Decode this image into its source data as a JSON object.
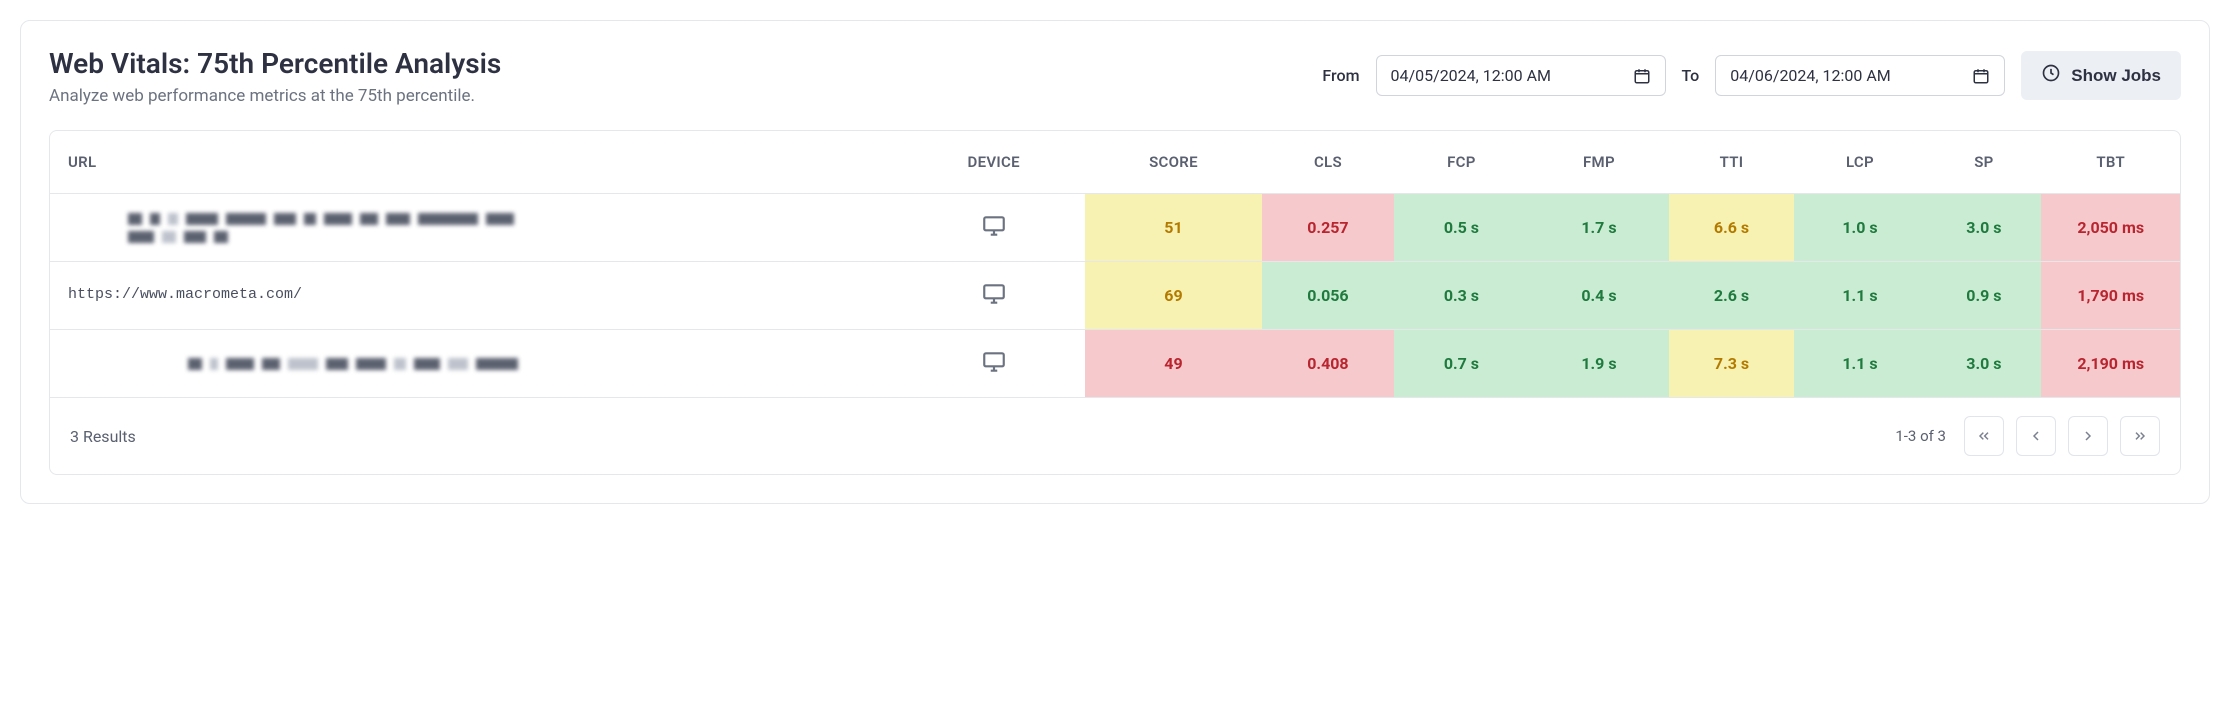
{
  "header": {
    "title": "Web Vitals: 75th Percentile Analysis",
    "subtitle": "Analyze web performance metrics at the 75th percentile.",
    "from_label": "From",
    "to_label": "To",
    "from_value": "04/05/2024, 12:00 AM",
    "to_value": "04/06/2024, 12:00 AM",
    "show_jobs_label": "Show Jobs"
  },
  "columns": [
    "URL",
    "DEVICE",
    "SCORE",
    "CLS",
    "FCP",
    "FMP",
    "TTI",
    "LCP",
    "SP",
    "TBT"
  ],
  "colors": {
    "good_bg": "#c9ecd2",
    "good_text": "#1f7a3e",
    "warn_bg": "#f7f2b2",
    "warn_text": "#b37a00",
    "bad_bg": "#f6c9cd",
    "bad_text": "#b8252f",
    "icon": "#6b7280"
  },
  "rows": [
    {
      "url_type": "redacted",
      "url": "",
      "score": {
        "value": "51",
        "status": "warn"
      },
      "cls": {
        "value": "0.257",
        "status": "bad"
      },
      "fcp": {
        "value": "0.5 s",
        "status": "good"
      },
      "fmp": {
        "value": "1.7 s",
        "status": "good"
      },
      "tti": {
        "value": "6.6 s",
        "status": "warn"
      },
      "lcp": {
        "value": "1.0 s",
        "status": "good"
      },
      "sp": {
        "value": "3.0 s",
        "status": "good"
      },
      "tbt": {
        "value": "2,050 ms",
        "status": "bad"
      }
    },
    {
      "url_type": "text",
      "url": "https://www.macrometa.com/",
      "score": {
        "value": "69",
        "status": "warn"
      },
      "cls": {
        "value": "0.056",
        "status": "good"
      },
      "fcp": {
        "value": "0.3 s",
        "status": "good"
      },
      "fmp": {
        "value": "0.4 s",
        "status": "good"
      },
      "tti": {
        "value": "2.6 s",
        "status": "good"
      },
      "lcp": {
        "value": "1.1 s",
        "status": "good"
      },
      "sp": {
        "value": "0.9 s",
        "status": "good"
      },
      "tbt": {
        "value": "1,790 ms",
        "status": "bad"
      }
    },
    {
      "url_type": "redacted",
      "url": "",
      "score": {
        "value": "49",
        "status": "bad"
      },
      "cls": {
        "value": "0.408",
        "status": "bad"
      },
      "fcp": {
        "value": "0.7 s",
        "status": "good"
      },
      "fmp": {
        "value": "1.9 s",
        "status": "good"
      },
      "tti": {
        "value": "7.3 s",
        "status": "warn"
      },
      "lcp": {
        "value": "1.1 s",
        "status": "good"
      },
      "sp": {
        "value": "3.0 s",
        "status": "good"
      },
      "tbt": {
        "value": "2,190 ms",
        "status": "bad"
      }
    }
  ],
  "footer": {
    "results_text": "3 Results",
    "page_info": "1-3 of 3"
  }
}
